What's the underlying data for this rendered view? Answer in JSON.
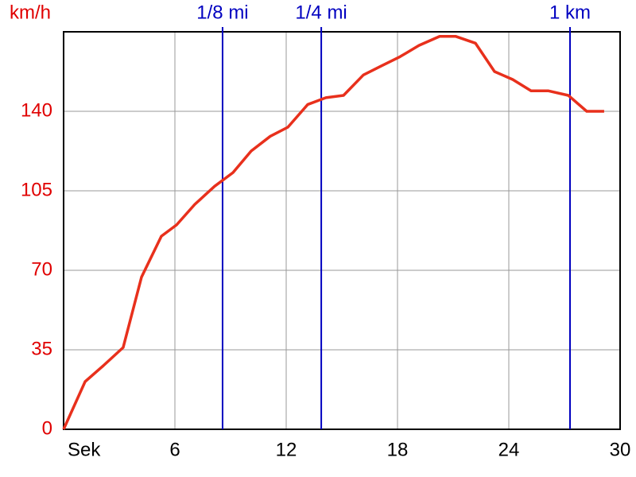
{
  "chart_data": {
    "type": "line",
    "y_label": "km/h",
    "x": [
      0,
      1.16,
      2.14,
      3.21,
      4.2,
      5.27,
      6.09,
      7.07,
      8.14,
      9.13,
      10.11,
      11.14,
      12.09,
      13.16,
      14.14,
      15.09,
      16.16,
      17.14,
      18.13,
      19.16,
      20.27,
      21.13,
      22.2,
      23.23,
      24.21,
      25.2,
      26.14,
      27.21,
      28.2,
      29.14
    ],
    "series": [
      {
        "color": "#e8301c",
        "values": [
          0,
          21,
          28,
          36,
          67,
          85,
          90,
          99,
          107,
          113,
          122.5,
          129,
          133,
          143,
          146,
          147,
          156,
          160,
          164,
          169,
          173,
          173,
          170,
          157.5,
          154,
          149,
          149,
          147,
          140,
          140
        ]
      }
    ],
    "xlim": [
      0,
      30
    ],
    "ylim": [
      0,
      175
    ],
    "xticks": [
      {
        "value": 0,
        "label": "Sek"
      },
      6,
      12,
      18,
      24,
      30
    ],
    "yticks": [
      0,
      35,
      70,
      105,
      140
    ],
    "grid": true,
    "tick_color": "#e00000",
    "markers": [
      {
        "label": "1/8 mi",
        "x": 8.57
      },
      {
        "label": "1/4 mi",
        "x": 13.89
      },
      {
        "label": "1 km",
        "x": 27.3
      }
    ],
    "marker_color": "#0000c0"
  }
}
